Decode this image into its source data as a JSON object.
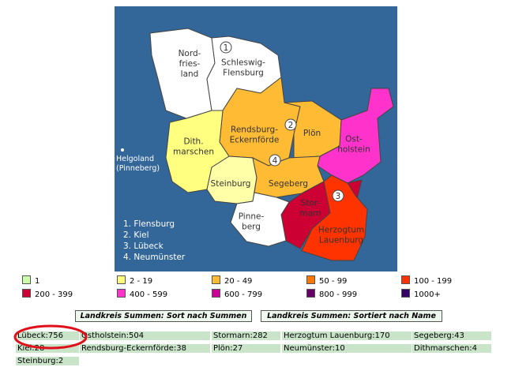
{
  "map": {
    "regions": [
      {
        "lines": [
          "Nord-",
          "fries-",
          "land"
        ],
        "color": "#ffffff"
      },
      {
        "lines": [
          "Schleswig-",
          "Flensburg"
        ],
        "color": "#ffffff"
      },
      {
        "lines": [
          "Rendsburg-",
          "Eckernförde"
        ],
        "color": "#ffbb33"
      },
      {
        "lines": [
          "Plön"
        ],
        "color": "#ffbb33"
      },
      {
        "lines": [
          "Ost-",
          "holstein"
        ],
        "color": "#ff33cc"
      },
      {
        "lines": [
          "Dith.",
          "marschen"
        ],
        "color": "#ffff80"
      },
      {
        "lines": [
          "Steinburg"
        ],
        "color": "#ffffa8"
      },
      {
        "lines": [
          "Segeberg"
        ],
        "color": "#ffbb33"
      },
      {
        "lines": [
          "Stor-",
          "marn"
        ],
        "color": "#cc0033"
      },
      {
        "lines": [
          "Herzogtum",
          "Lauenburg"
        ],
        "color": "#ff3300"
      },
      {
        "lines": [
          "Pinne-",
          "berg"
        ],
        "color": "#ffffff"
      }
    ],
    "markers": [
      "1",
      "2",
      "3",
      "4"
    ],
    "island": [
      "Helgoland",
      "(Pinneberg)"
    ],
    "key": [
      "1. Flensburg",
      "2. Kiel",
      "3. Lübeck",
      "4. Neumünster"
    ]
  },
  "legend": [
    {
      "label": "1",
      "color": "#ccffaa"
    },
    {
      "label": "2 - 19",
      "color": "#ffff80"
    },
    {
      "label": "20 - 49",
      "color": "#ffbb33"
    },
    {
      "label": "50 - 99",
      "color": "#ff7700"
    },
    {
      "label": "100 - 199",
      "color": "#ff3300"
    },
    {
      "label": "200 - 399",
      "color": "#cc0033"
    },
    {
      "label": "400 - 599",
      "color": "#ff33cc"
    },
    {
      "label": "600 - 799",
      "color": "#cc0099"
    },
    {
      "label": "800 - 999",
      "color": "#660066"
    },
    {
      "label": "1000+",
      "color": "#330066"
    }
  ],
  "buttons": [
    "Landkreis Summen: Sort nach Summen",
    "Landkreis Summen: Sortiert nach Name"
  ],
  "totals": [
    [
      "Lübeck:756",
      "Ostholstein:504",
      "Stormarn:282",
      "Herzogtum Lauenburg:170",
      "Segeberg:43"
    ],
    [
      "Kiel:28",
      "Rendsburg-Eckernförde:38",
      "Plön:27",
      "Neumünster:10",
      "Dithmarschen:4"
    ],
    [
      "Steinburg:2"
    ]
  ]
}
